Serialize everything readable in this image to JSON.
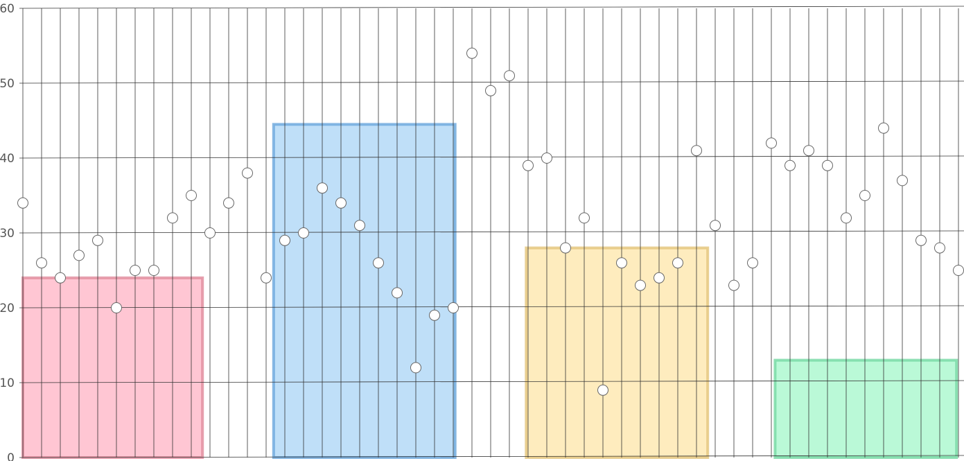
{
  "chart_data": {
    "type": "scatter",
    "title": "",
    "xlabel": "",
    "ylabel": "",
    "ylim": [
      0,
      60
    ],
    "y_ticks": [
      "0",
      "10",
      "20",
      "30",
      "40",
      "50",
      "60"
    ],
    "grid": "on",
    "legend": "none",
    "x": [
      0,
      1,
      2,
      3,
      4,
      5,
      6,
      7,
      8,
      9,
      10,
      11,
      12,
      13,
      14,
      15,
      16,
      17,
      18,
      19,
      20,
      21,
      22,
      23,
      24,
      25,
      26,
      27,
      28,
      29,
      30,
      31,
      32,
      33,
      34,
      35,
      36,
      37,
      38,
      39,
      40,
      41,
      42,
      43,
      44,
      45,
      46,
      47,
      48,
      49,
      50
    ],
    "y": [
      34,
      26,
      24,
      27,
      29,
      20,
      25,
      25,
      32,
      35,
      30,
      34,
      38,
      24,
      29,
      30,
      36,
      34,
      31,
      26,
      22,
      12,
      19,
      20,
      54,
      49,
      51,
      39,
      40,
      28,
      32,
      9,
      26,
      23,
      24,
      26,
      41,
      31,
      23,
      26,
      42,
      39,
      41,
      39,
      32,
      35,
      44,
      37,
      29,
      28,
      25
    ],
    "point_color": "#ffffff",
    "point_stroke": "#666666",
    "regions": [
      {
        "x_start": 0,
        "x_end": 9.6,
        "y_top": 24,
        "fill": "#ffb3c4",
        "stroke": "#e08a9b"
      },
      {
        "x_start": 13.4,
        "x_end": 23.1,
        "y_top": 44.5,
        "fill": "#a9d4f5",
        "stroke": "#6aa6dc"
      },
      {
        "x_start": 26.9,
        "x_end": 36.6,
        "y_top": 28,
        "fill": "#fde6a8",
        "stroke": "#e3c47a"
      },
      {
        "x_start": 40.2,
        "x_end": 49.9,
        "y_top": 13,
        "fill": "#a3f7c9",
        "stroke": "#74d8a2"
      }
    ]
  }
}
